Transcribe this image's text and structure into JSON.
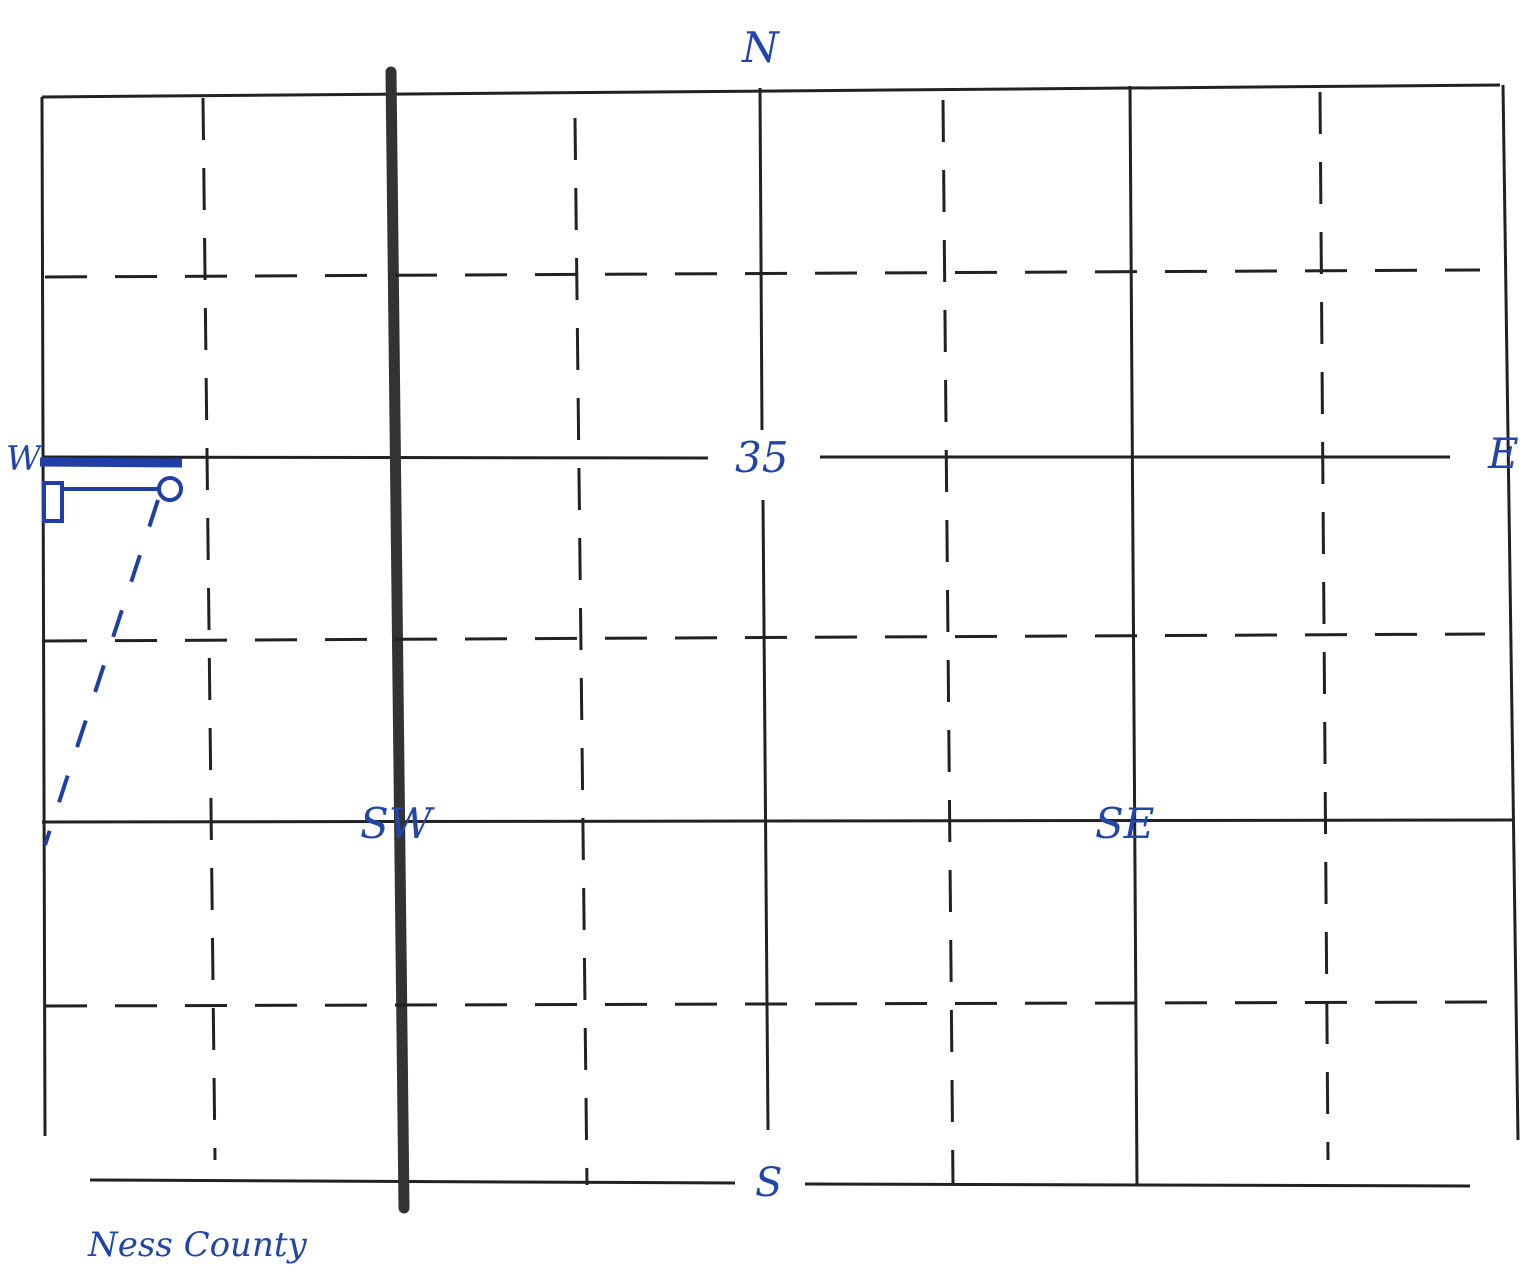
{
  "compass": {
    "north": "N",
    "south": "S",
    "east": "E",
    "west": "W"
  },
  "section_number": "35",
  "quarter_labels": {
    "southwest": "SW",
    "southeast": "SE"
  },
  "county_note": "Ness County",
  "colors": {
    "ink": "#2246a8",
    "grid": "#222222",
    "paper": "#ffffff"
  },
  "icons": {
    "well_marker": "circle-icon",
    "tank_marker": "rectangle-icon"
  }
}
